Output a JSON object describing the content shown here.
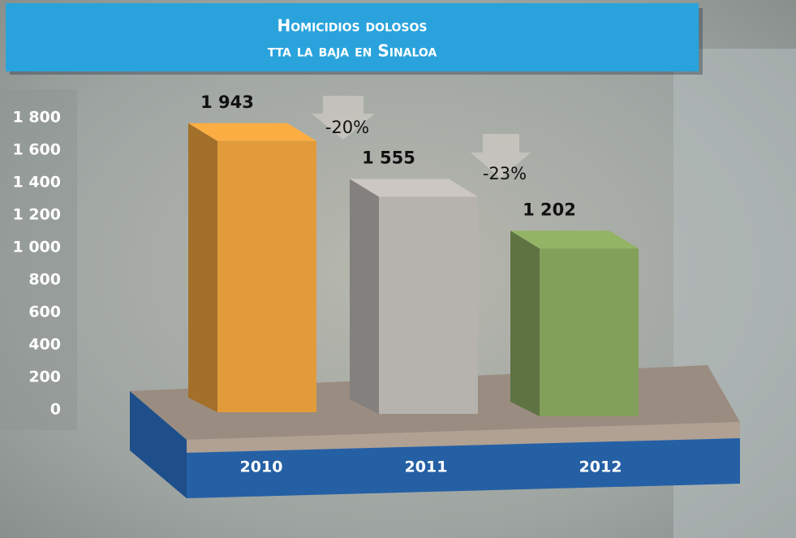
{
  "chart_data": {
    "type": "bar3d",
    "title": "Homicidios dolosos",
    "subtitle": "tta la baja en Sinaloa",
    "categories": [
      "2010",
      "2011",
      "2012"
    ],
    "values": [
      1943,
      1555,
      1202
    ],
    "value_labels": [
      "1 943",
      "1 555",
      "1 202"
    ],
    "colors": [
      "#e29b3b",
      "#b6b2ad",
      "#83a05a"
    ],
    "ylim": [
      0,
      1800
    ],
    "yticks": [
      0,
      200,
      400,
      600,
      800,
      {
        "value": 1000,
        "label": "1 000"
      },
      {
        "value": 1200,
        "label": "1 200"
      },
      {
        "value": 1400,
        "label": "1 400"
      },
      {
        "value": 1600,
        "label": "1 600"
      },
      {
        "value": 1800,
        "label": "1 800"
      }
    ],
    "annotations": [
      {
        "text": "-20%"
      },
      {
        "text": "-23%"
      }
    ]
  }
}
